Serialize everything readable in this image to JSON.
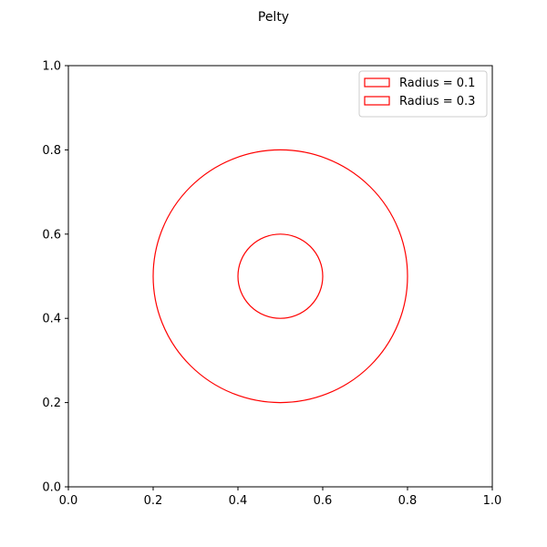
{
  "chart_data": {
    "type": "scatter",
    "title": "Pelty",
    "xlabel": "",
    "ylabel": "",
    "xlim": [
      0.0,
      1.0
    ],
    "ylim": [
      0.0,
      1.0
    ],
    "x_ticks": [
      "0.0",
      "0.2",
      "0.4",
      "0.6",
      "0.8",
      "1.0"
    ],
    "y_ticks": [
      "0.0",
      "0.2",
      "0.4",
      "0.6",
      "0.8",
      "1.0"
    ],
    "grid": false,
    "legend_position": "top-right",
    "aspect": "equal",
    "series": [
      {
        "name": "Radius = 0.1",
        "shape": "circle",
        "center": [
          0.5,
          0.5
        ],
        "radius": 0.1,
        "edge_color": "#ff0000",
        "fill": "none"
      },
      {
        "name": "Radius = 0.3",
        "shape": "circle",
        "center": [
          0.5,
          0.5
        ],
        "radius": 0.3,
        "edge_color": "#ff0000",
        "fill": "none"
      }
    ]
  }
}
